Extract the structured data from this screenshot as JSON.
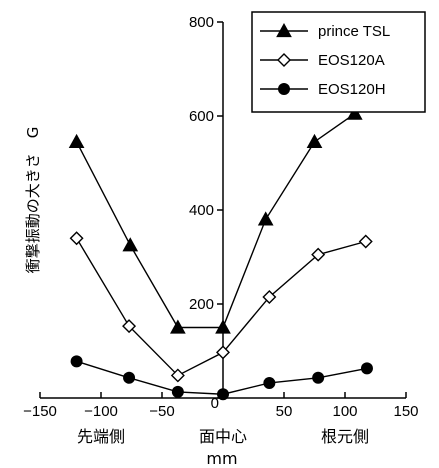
{
  "chart_data": {
    "type": "line",
    "xlabel": "mm",
    "ylabel": "衝撃振動の大きさ　G",
    "xlim": [
      -150,
      150
    ],
    "ylim": [
      0,
      800
    ],
    "x_ticks": [
      -150,
      -100,
      -50,
      0,
      50,
      100,
      150
    ],
    "y_ticks": [
      0,
      200,
      400,
      600,
      800
    ],
    "category_labels": [
      {
        "x": -100,
        "text": "先端側"
      },
      {
        "x": 0,
        "text": "面中心"
      },
      {
        "x": 100,
        "text": "根元側"
      }
    ],
    "legend_position": "top-right",
    "series": [
      {
        "name": "prince TSL",
        "marker": "filled-triangle",
        "color": "#000000",
        "points": [
          [
            -120,
            545
          ],
          [
            -76,
            325
          ],
          [
            -37,
            150
          ],
          [
            0,
            150
          ],
          [
            35,
            380
          ],
          [
            75,
            545
          ],
          [
            108,
            605
          ]
        ]
      },
      {
        "name": "EOS120A",
        "marker": "open-diamond",
        "color": "#000000",
        "points": [
          [
            -120,
            340
          ],
          [
            -77,
            153
          ],
          [
            -37,
            48
          ],
          [
            0,
            97
          ],
          [
            38,
            215
          ],
          [
            78,
            305
          ],
          [
            117,
            333
          ]
        ]
      },
      {
        "name": "EOS120H",
        "marker": "filled-circle",
        "color": "#000000",
        "points": [
          [
            -120,
            78
          ],
          [
            -77,
            43
          ],
          [
            -37,
            13
          ],
          [
            0,
            8
          ],
          [
            38,
            32
          ],
          [
            78,
            43
          ],
          [
            118,
            63
          ]
        ]
      }
    ]
  }
}
